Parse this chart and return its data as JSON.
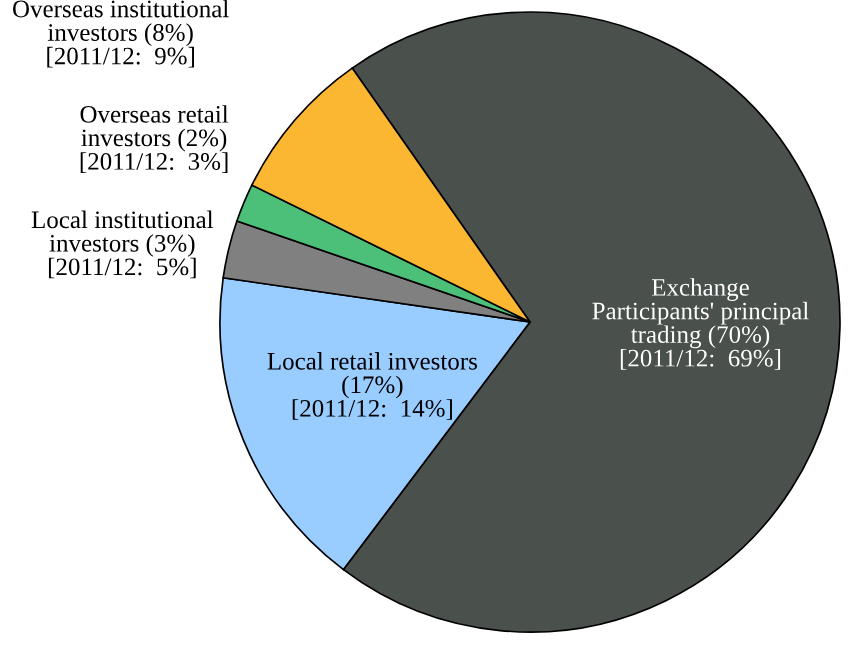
{
  "chart_data": {
    "type": "pie",
    "categories": [
      "Exchange\nParticipants' principal\ntrading (70%)\n[2011/12:  69%]",
      "Local retail investors\n(17%)\n[2011/12:  14%]",
      "Local institutional\ninvestors (3%)\n[2011/12:  5%]",
      "Overseas retail\ninvestors (2%)\n[2011/12:  3%]",
      "Overseas institutional\ninvestors (8%)\n[2011/12:  9%]"
    ],
    "values": [
      70,
      17,
      3,
      2,
      8
    ],
    "colors": [
      "#4a504c",
      "#99ccff",
      "#808080",
      "#4cbf78",
      "#fbb632"
    ]
  }
}
